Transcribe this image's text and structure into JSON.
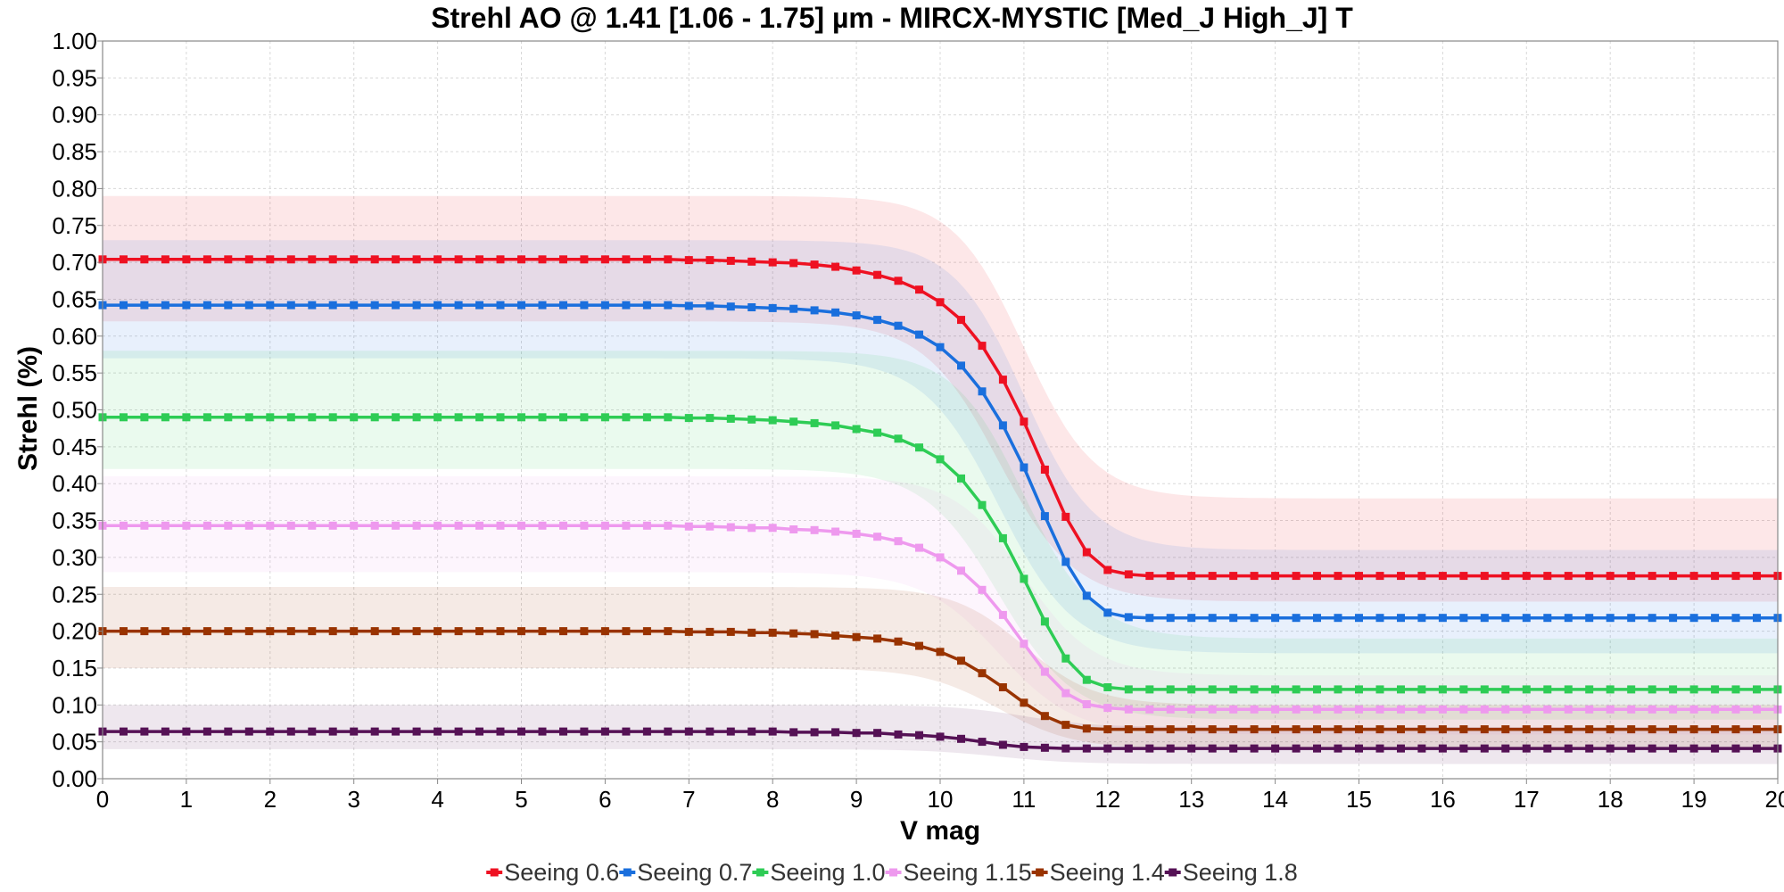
{
  "chart_data": {
    "type": "line",
    "title": "Strehl AO @ 1.41 [1.06 - 1.75] µm - MIRCX-MYSTIC [Med_J High_J] T",
    "xlabel": "V mag",
    "ylabel": "Strehl (%)",
    "xlim": [
      0,
      20
    ],
    "ylim": [
      0,
      1
    ],
    "xticks": [
      "0",
      "1",
      "2",
      "3",
      "4",
      "5",
      "6",
      "7",
      "8",
      "9",
      "10",
      "11",
      "12",
      "13",
      "14",
      "15",
      "16",
      "17",
      "18",
      "19",
      "20"
    ],
    "yticks": [
      "0.00",
      "0.05",
      "0.10",
      "0.15",
      "0.20",
      "0.25",
      "0.30",
      "0.35",
      "0.40",
      "0.45",
      "0.50",
      "0.55",
      "0.60",
      "0.65",
      "0.70",
      "0.75",
      "0.80",
      "0.85",
      "0.90",
      "0.95",
      "1.00"
    ],
    "grid": true,
    "legend_position": "bottom",
    "x": [
      0,
      0.25,
      0.5,
      0.75,
      1,
      1.25,
      1.5,
      1.75,
      2,
      2.25,
      2.5,
      2.75,
      3,
      3.25,
      3.5,
      3.75,
      4,
      4.25,
      4.5,
      4.75,
      5,
      5.25,
      5.5,
      5.75,
      6,
      6.25,
      6.5,
      6.75,
      7,
      7.25,
      7.5,
      7.75,
      8,
      8.25,
      8.5,
      8.75,
      9,
      9.25,
      9.5,
      9.75,
      10,
      10.25,
      10.5,
      10.75,
      11,
      11.25,
      11.5,
      11.75,
      12,
      12.25,
      12.5,
      12.75,
      13,
      13.25,
      13.5,
      13.75,
      14,
      14.25,
      14.5,
      14.75,
      15,
      15.25,
      15.5,
      15.75,
      16,
      16.25,
      16.5,
      16.75,
      17,
      17.25,
      17.5,
      17.75,
      18,
      18.25,
      18.5,
      18.75,
      19,
      19.25,
      19.5,
      19.75,
      20
    ],
    "series": [
      {
        "name": "Seeing 0.6",
        "color": "#ee1122",
        "values": [
          0.704,
          0.704,
          0.704,
          0.704,
          0.704,
          0.704,
          0.704,
          0.704,
          0.704,
          0.704,
          0.704,
          0.704,
          0.704,
          0.704,
          0.704,
          0.704,
          0.704,
          0.704,
          0.704,
          0.704,
          0.704,
          0.704,
          0.704,
          0.704,
          0.704,
          0.704,
          0.704,
          0.704,
          0.703,
          0.703,
          0.702,
          0.701,
          0.7,
          0.699,
          0.697,
          0.694,
          0.689,
          0.683,
          0.675,
          0.663,
          0.646,
          0.622,
          0.587,
          0.541,
          0.484,
          0.419,
          0.355,
          0.307,
          0.283,
          0.277,
          0.275,
          0.275,
          0.275,
          0.275,
          0.275,
          0.275,
          0.275,
          0.275,
          0.275,
          0.275,
          0.275,
          0.275,
          0.275,
          0.275,
          0.275,
          0.275,
          0.275,
          0.275,
          0.275,
          0.275,
          0.275,
          0.275,
          0.275,
          0.275,
          0.275,
          0.275,
          0.275,
          0.275,
          0.275,
          0.275,
          0.275
        ],
        "band": [
          [
            0.62,
            0.79
          ],
          [
            0.24,
            0.38
          ]
        ]
      },
      {
        "name": "Seeing 0.7",
        "color": "#1a6fdd",
        "values": [
          0.642,
          0.642,
          0.642,
          0.642,
          0.642,
          0.642,
          0.642,
          0.642,
          0.642,
          0.642,
          0.642,
          0.642,
          0.642,
          0.642,
          0.642,
          0.642,
          0.642,
          0.642,
          0.642,
          0.642,
          0.642,
          0.642,
          0.642,
          0.642,
          0.642,
          0.642,
          0.642,
          0.642,
          0.641,
          0.641,
          0.64,
          0.639,
          0.638,
          0.637,
          0.635,
          0.632,
          0.628,
          0.622,
          0.614,
          0.602,
          0.585,
          0.56,
          0.525,
          0.479,
          0.422,
          0.356,
          0.294,
          0.248,
          0.225,
          0.219,
          0.218,
          0.218,
          0.218,
          0.218,
          0.218,
          0.218,
          0.218,
          0.218,
          0.218,
          0.218,
          0.218,
          0.218,
          0.218,
          0.218,
          0.218,
          0.218,
          0.218,
          0.218,
          0.218,
          0.218,
          0.218,
          0.218,
          0.218,
          0.218,
          0.218,
          0.218,
          0.218,
          0.218,
          0.218,
          0.218,
          0.218
        ],
        "band": [
          [
            0.57,
            0.73
          ],
          [
            0.17,
            0.31
          ]
        ]
      },
      {
        "name": "Seeing 1.0",
        "color": "#2ecc55",
        "values": [
          0.49,
          0.49,
          0.49,
          0.49,
          0.49,
          0.49,
          0.49,
          0.49,
          0.49,
          0.49,
          0.49,
          0.49,
          0.49,
          0.49,
          0.49,
          0.49,
          0.49,
          0.49,
          0.49,
          0.49,
          0.49,
          0.49,
          0.49,
          0.49,
          0.49,
          0.49,
          0.49,
          0.49,
          0.489,
          0.489,
          0.488,
          0.487,
          0.486,
          0.484,
          0.482,
          0.479,
          0.474,
          0.469,
          0.461,
          0.449,
          0.433,
          0.407,
          0.371,
          0.326,
          0.271,
          0.213,
          0.163,
          0.134,
          0.124,
          0.121,
          0.121,
          0.121,
          0.121,
          0.121,
          0.121,
          0.121,
          0.121,
          0.121,
          0.121,
          0.121,
          0.121,
          0.121,
          0.121,
          0.121,
          0.121,
          0.121,
          0.121,
          0.121,
          0.121,
          0.121,
          0.121,
          0.121,
          0.121,
          0.121,
          0.121,
          0.121,
          0.121,
          0.121,
          0.121,
          0.121,
          0.121
        ],
        "band": [
          [
            0.42,
            0.58
          ],
          [
            0.08,
            0.19
          ]
        ]
      },
      {
        "name": "Seeing 1.15",
        "color": "#ee99ee",
        "values": [
          0.343,
          0.343,
          0.343,
          0.343,
          0.343,
          0.343,
          0.343,
          0.343,
          0.343,
          0.343,
          0.343,
          0.343,
          0.343,
          0.343,
          0.343,
          0.343,
          0.343,
          0.343,
          0.343,
          0.343,
          0.343,
          0.343,
          0.343,
          0.343,
          0.343,
          0.343,
          0.343,
          0.343,
          0.342,
          0.342,
          0.341,
          0.34,
          0.34,
          0.338,
          0.337,
          0.335,
          0.332,
          0.328,
          0.322,
          0.313,
          0.3,
          0.282,
          0.256,
          0.222,
          0.183,
          0.145,
          0.116,
          0.101,
          0.096,
          0.094,
          0.094,
          0.094,
          0.094,
          0.094,
          0.094,
          0.094,
          0.094,
          0.094,
          0.094,
          0.094,
          0.094,
          0.094,
          0.094,
          0.094,
          0.094,
          0.094,
          0.094,
          0.094,
          0.094,
          0.094,
          0.094,
          0.094,
          0.094,
          0.094,
          0.094,
          0.094,
          0.094,
          0.094,
          0.094,
          0.094,
          0.094
        ],
        "band": [
          [
            0.28,
            0.41
          ],
          [
            0.06,
            0.14
          ]
        ]
      },
      {
        "name": "Seeing 1.4",
        "color": "#993300",
        "values": [
          0.2,
          0.2,
          0.2,
          0.2,
          0.2,
          0.2,
          0.2,
          0.2,
          0.2,
          0.2,
          0.2,
          0.2,
          0.2,
          0.2,
          0.2,
          0.2,
          0.2,
          0.2,
          0.2,
          0.2,
          0.2,
          0.2,
          0.2,
          0.2,
          0.2,
          0.2,
          0.2,
          0.2,
          0.199,
          0.199,
          0.199,
          0.198,
          0.198,
          0.197,
          0.196,
          0.194,
          0.192,
          0.19,
          0.186,
          0.18,
          0.172,
          0.16,
          0.143,
          0.124,
          0.103,
          0.085,
          0.073,
          0.068,
          0.067,
          0.067,
          0.067,
          0.067,
          0.067,
          0.067,
          0.067,
          0.067,
          0.067,
          0.067,
          0.067,
          0.067,
          0.067,
          0.067,
          0.067,
          0.067,
          0.067,
          0.067,
          0.067,
          0.067,
          0.067,
          0.067,
          0.067,
          0.067,
          0.067,
          0.067,
          0.067,
          0.067,
          0.067,
          0.067,
          0.067,
          0.067,
          0.067
        ],
        "band": [
          [
            0.15,
            0.26
          ],
          [
            0.04,
            0.1
          ]
        ]
      },
      {
        "name": "Seeing 1.8",
        "color": "#551155",
        "values": [
          0.064,
          0.064,
          0.064,
          0.064,
          0.064,
          0.064,
          0.064,
          0.064,
          0.064,
          0.064,
          0.064,
          0.064,
          0.064,
          0.064,
          0.064,
          0.064,
          0.064,
          0.064,
          0.064,
          0.064,
          0.064,
          0.064,
          0.064,
          0.064,
          0.064,
          0.064,
          0.064,
          0.064,
          0.064,
          0.064,
          0.064,
          0.064,
          0.064,
          0.063,
          0.063,
          0.063,
          0.062,
          0.062,
          0.06,
          0.059,
          0.057,
          0.054,
          0.05,
          0.046,
          0.043,
          0.042,
          0.041,
          0.041,
          0.041,
          0.041,
          0.041,
          0.041,
          0.041,
          0.041,
          0.041,
          0.041,
          0.041,
          0.041,
          0.041,
          0.041,
          0.041,
          0.041,
          0.041,
          0.041,
          0.041,
          0.041,
          0.041,
          0.041,
          0.041,
          0.041,
          0.041,
          0.041,
          0.041,
          0.041,
          0.041,
          0.041,
          0.041,
          0.041,
          0.041,
          0.041,
          0.041
        ],
        "band": [
          [
            0.04,
            0.1
          ],
          [
            0.02,
            0.07
          ]
        ]
      }
    ]
  }
}
